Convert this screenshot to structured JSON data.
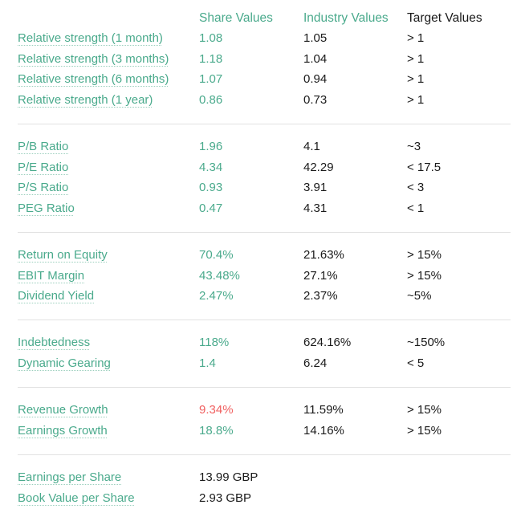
{
  "headers": {
    "share": "Share Values",
    "industry": "Industry Values",
    "target": "Target Values"
  },
  "groups": [
    {
      "rows": [
        {
          "label": "Relative strength (1 month)",
          "share": "1.08",
          "industry": "1.05",
          "target": "> 1"
        },
        {
          "label": "Relative strength (3 months)",
          "share": "1.18",
          "industry": "1.04",
          "target": "> 1"
        },
        {
          "label": "Relative strength (6 months)",
          "share": "1.07",
          "industry": "0.94",
          "target": "> 1"
        },
        {
          "label": "Relative strength (1 year)",
          "share": "0.86",
          "industry": "0.73",
          "target": "> 1"
        }
      ]
    },
    {
      "rows": [
        {
          "label": "P/B Ratio",
          "share": "1.96",
          "industry": "4.1",
          "target": "~3"
        },
        {
          "label": "P/E Ratio",
          "share": "4.34",
          "industry": "42.29",
          "target": "< 17.5"
        },
        {
          "label": "P/S Ratio",
          "share": "0.93",
          "industry": "3.91",
          "target": "< 3"
        },
        {
          "label": "PEG Ratio",
          "share": "0.47",
          "industry": "4.31",
          "target": "< 1"
        }
      ]
    },
    {
      "rows": [
        {
          "label": "Return on Equity",
          "share": "70.4%",
          "industry": "21.63%",
          "target": "> 15%"
        },
        {
          "label": "EBIT Margin",
          "share": "43.48%",
          "industry": "27.1%",
          "target": "> 15%"
        },
        {
          "label": "Dividend Yield",
          "share": "2.47%",
          "industry": "2.37%",
          "target": "~5%"
        }
      ]
    },
    {
      "rows": [
        {
          "label": "Indebtedness",
          "share": "118%",
          "industry": "624.16%",
          "target": "~150%"
        },
        {
          "label": "Dynamic Gearing",
          "share": "1.4",
          "industry": "6.24",
          "target": "< 5"
        }
      ]
    },
    {
      "rows": [
        {
          "label": "Revenue Growth",
          "share": "9.34%",
          "industry": "11.59%",
          "target": "> 15%",
          "share_color": "#f06060"
        },
        {
          "label": "Earnings Growth",
          "share": "18.8%",
          "industry": "14.16%",
          "target": "> 15%"
        }
      ]
    },
    {
      "rows": [
        {
          "label": "Earnings per Share",
          "share": "13.99 GBP",
          "industry": "",
          "target": "",
          "share_color": "#1a1a1a"
        },
        {
          "label": "Book Value per Share",
          "share": "2.93 GBP",
          "industry": "",
          "target": "",
          "share_color": "#1a1a1a"
        }
      ]
    }
  ],
  "colors": {
    "accent": "#4aaa8c",
    "negative": "#f06060",
    "text": "#1a1a1a",
    "divider": "#e2e2e2"
  }
}
